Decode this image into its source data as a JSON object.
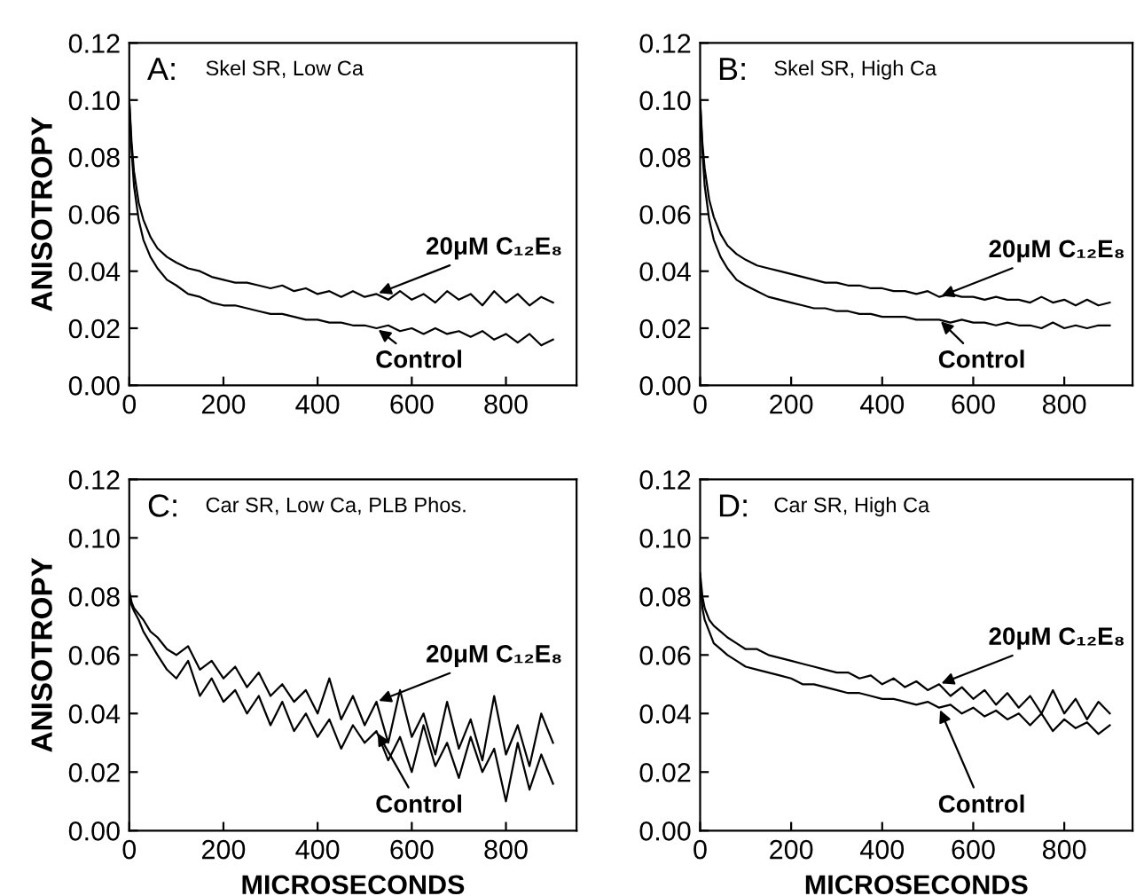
{
  "chart_data": [
    {
      "type": "line",
      "title": "A:",
      "subtitle": "Skel SR, Low Ca",
      "ylabel": "ANISOTROPY",
      "x": [
        0,
        5,
        10,
        20,
        30,
        45,
        60,
        80,
        100,
        125,
        150,
        175,
        200,
        225,
        250,
        275,
        300,
        325,
        350,
        375,
        400,
        425,
        450,
        475,
        500,
        525,
        550,
        575,
        600,
        625,
        650,
        675,
        700,
        725,
        750,
        775,
        800,
        825,
        850,
        875,
        900
      ],
      "series": [
        {
          "name": "20μM C₁₂E₈",
          "color": "#000000",
          "values": [
            0.1,
            0.085,
            0.075,
            0.064,
            0.058,
            0.052,
            0.048,
            0.045,
            0.043,
            0.041,
            0.04,
            0.038,
            0.037,
            0.036,
            0.036,
            0.035,
            0.034,
            0.035,
            0.033,
            0.034,
            0.032,
            0.033,
            0.031,
            0.033,
            0.031,
            0.032,
            0.03,
            0.033,
            0.03,
            0.032,
            0.029,
            0.033,
            0.03,
            0.032,
            0.028,
            0.033,
            0.029,
            0.032,
            0.028,
            0.031,
            0.029
          ]
        },
        {
          "name": "Control",
          "color": "#000000",
          "values": [
            0.1,
            0.082,
            0.07,
            0.058,
            0.051,
            0.045,
            0.041,
            0.037,
            0.035,
            0.032,
            0.031,
            0.029,
            0.028,
            0.028,
            0.027,
            0.026,
            0.025,
            0.025,
            0.024,
            0.023,
            0.023,
            0.022,
            0.022,
            0.021,
            0.021,
            0.02,
            0.021,
            0.019,
            0.02,
            0.018,
            0.02,
            0.018,
            0.019,
            0.017,
            0.019,
            0.016,
            0.018,
            0.015,
            0.018,
            0.014,
            0.016
          ]
        }
      ],
      "xlim": [
        0,
        950
      ],
      "ylim": [
        0,
        0.12
      ],
      "xticks": [
        0,
        200,
        400,
        600,
        800
      ],
      "yticks": [
        {
          "value": 0,
          "label": "0.00"
        },
        {
          "value": 0.02,
          "label": "0.02"
        },
        {
          "value": 0.04,
          "label": "0.04"
        },
        {
          "value": 0.06,
          "label": "0.06"
        },
        {
          "value": 0.08,
          "label": "0.08"
        },
        {
          "value": 0.1,
          "label": "0.10"
        },
        {
          "value": 0.12,
          "label": "0.12"
        }
      ],
      "grid": false,
      "legend": "right"
    },
    {
      "type": "line",
      "title": "B:",
      "subtitle": "Skel SR, High Ca",
      "x": [
        0,
        5,
        10,
        20,
        30,
        45,
        60,
        80,
        100,
        125,
        150,
        175,
        200,
        225,
        250,
        275,
        300,
        325,
        350,
        375,
        400,
        425,
        450,
        475,
        500,
        525,
        550,
        575,
        600,
        625,
        650,
        675,
        700,
        725,
        750,
        775,
        800,
        825,
        850,
        875,
        900
      ],
      "series": [
        {
          "name": "20μM C₁₂E₈",
          "color": "#000000",
          "values": [
            0.1,
            0.085,
            0.076,
            0.065,
            0.059,
            0.053,
            0.049,
            0.046,
            0.044,
            0.042,
            0.041,
            0.04,
            0.039,
            0.038,
            0.037,
            0.036,
            0.036,
            0.035,
            0.035,
            0.034,
            0.034,
            0.033,
            0.033,
            0.032,
            0.033,
            0.031,
            0.032,
            0.031,
            0.031,
            0.03,
            0.031,
            0.03,
            0.03,
            0.029,
            0.031,
            0.029,
            0.03,
            0.028,
            0.03,
            0.028,
            0.029
          ]
        },
        {
          "name": "Control",
          "color": "#000000",
          "values": [
            0.1,
            0.082,
            0.07,
            0.058,
            0.051,
            0.045,
            0.041,
            0.037,
            0.035,
            0.033,
            0.031,
            0.03,
            0.029,
            0.028,
            0.027,
            0.027,
            0.026,
            0.026,
            0.025,
            0.025,
            0.024,
            0.024,
            0.024,
            0.023,
            0.023,
            0.023,
            0.022,
            0.023,
            0.022,
            0.022,
            0.021,
            0.022,
            0.021,
            0.021,
            0.02,
            0.022,
            0.02,
            0.021,
            0.02,
            0.021,
            0.021
          ]
        }
      ],
      "xlim": [
        0,
        950
      ],
      "ylim": [
        0,
        0.12
      ],
      "xticks": [
        0,
        200,
        400,
        600,
        800
      ],
      "yticks": [
        {
          "value": 0,
          "label": "0.00"
        },
        {
          "value": 0.02,
          "label": "0.02"
        },
        {
          "value": 0.04,
          "label": "0.04"
        },
        {
          "value": 0.06,
          "label": "0.06"
        },
        {
          "value": 0.08,
          "label": "0.08"
        },
        {
          "value": 0.1,
          "label": "0.10"
        },
        {
          "value": 0.12,
          "label": "0.12"
        }
      ],
      "grid": false,
      "legend": "right"
    },
    {
      "type": "line",
      "title": "C:",
      "subtitle": "Car SR, Low Ca, PLB Phos.",
      "ylabel": "ANISOTROPY",
      "xlabel": "MICROSECONDS",
      "x": [
        0,
        5,
        10,
        20,
        30,
        45,
        60,
        80,
        100,
        125,
        150,
        175,
        200,
        225,
        250,
        275,
        300,
        325,
        350,
        375,
        400,
        425,
        450,
        475,
        500,
        525,
        550,
        575,
        600,
        625,
        650,
        675,
        700,
        725,
        750,
        775,
        800,
        825,
        850,
        875,
        900
      ],
      "series": [
        {
          "name": "20μM C₁₂E₈",
          "color": "#000000",
          "values": [
            0.082,
            0.078,
            0.076,
            0.074,
            0.072,
            0.068,
            0.066,
            0.062,
            0.06,
            0.063,
            0.055,
            0.058,
            0.052,
            0.056,
            0.049,
            0.054,
            0.046,
            0.05,
            0.044,
            0.048,
            0.04,
            0.052,
            0.038,
            0.046,
            0.036,
            0.044,
            0.03,
            0.048,
            0.032,
            0.04,
            0.026,
            0.044,
            0.028,
            0.038,
            0.024,
            0.046,
            0.026,
            0.036,
            0.022,
            0.04,
            0.03
          ]
        },
        {
          "name": "Control",
          "color": "#000000",
          "values": [
            0.08,
            0.077,
            0.075,
            0.072,
            0.068,
            0.064,
            0.06,
            0.055,
            0.052,
            0.058,
            0.046,
            0.052,
            0.044,
            0.048,
            0.04,
            0.046,
            0.036,
            0.044,
            0.034,
            0.04,
            0.032,
            0.038,
            0.028,
            0.036,
            0.03,
            0.034,
            0.024,
            0.032,
            0.02,
            0.036,
            0.022,
            0.03,
            0.018,
            0.032,
            0.02,
            0.028,
            0.01,
            0.03,
            0.014,
            0.026,
            0.016
          ]
        }
      ],
      "xlim": [
        0,
        950
      ],
      "ylim": [
        0,
        0.12
      ],
      "xticks": [
        0,
        200,
        400,
        600,
        800
      ],
      "yticks": [
        {
          "value": 0,
          "label": "0.00"
        },
        {
          "value": 0.02,
          "label": "0.02"
        },
        {
          "value": 0.04,
          "label": "0.04"
        },
        {
          "value": 0.06,
          "label": "0.06"
        },
        {
          "value": 0.08,
          "label": "0.08"
        },
        {
          "value": 0.1,
          "label": "0.10"
        },
        {
          "value": 0.12,
          "label": "0.12"
        }
      ],
      "grid": false,
      "legend": "right"
    },
    {
      "type": "line",
      "title": "D:",
      "subtitle": "Car SR, High Ca",
      "xlabel": "MICROSECONDS",
      "x": [
        0,
        5,
        10,
        20,
        30,
        45,
        60,
        80,
        100,
        125,
        150,
        175,
        200,
        225,
        250,
        275,
        300,
        325,
        350,
        375,
        400,
        425,
        450,
        475,
        500,
        525,
        550,
        575,
        600,
        625,
        650,
        675,
        700,
        725,
        750,
        775,
        800,
        825,
        850,
        875,
        900
      ],
      "series": [
        {
          "name": "20μM C₁₂E₈",
          "color": "#000000",
          "values": [
            0.088,
            0.08,
            0.076,
            0.072,
            0.07,
            0.068,
            0.066,
            0.064,
            0.062,
            0.062,
            0.06,
            0.059,
            0.058,
            0.057,
            0.056,
            0.055,
            0.054,
            0.054,
            0.052,
            0.053,
            0.05,
            0.052,
            0.049,
            0.051,
            0.048,
            0.05,
            0.046,
            0.049,
            0.045,
            0.048,
            0.043,
            0.047,
            0.042,
            0.046,
            0.04,
            0.048,
            0.04,
            0.045,
            0.038,
            0.044,
            0.04
          ]
        },
        {
          "name": "Control",
          "color": "#000000",
          "values": [
            0.086,
            0.076,
            0.072,
            0.068,
            0.064,
            0.062,
            0.06,
            0.058,
            0.056,
            0.055,
            0.054,
            0.053,
            0.052,
            0.05,
            0.05,
            0.049,
            0.048,
            0.047,
            0.047,
            0.046,
            0.045,
            0.045,
            0.044,
            0.043,
            0.044,
            0.042,
            0.043,
            0.04,
            0.042,
            0.039,
            0.041,
            0.038,
            0.04,
            0.036,
            0.04,
            0.034,
            0.038,
            0.035,
            0.037,
            0.033,
            0.036
          ]
        }
      ],
      "xlim": [
        0,
        950
      ],
      "ylim": [
        0,
        0.12
      ],
      "xticks": [
        0,
        200,
        400,
        600,
        800
      ],
      "yticks": [
        {
          "value": 0,
          "label": "0.00"
        },
        {
          "value": 0.02,
          "label": "0.02"
        },
        {
          "value": 0.04,
          "label": "0.04"
        },
        {
          "value": 0.06,
          "label": "0.06"
        },
        {
          "value": 0.08,
          "label": "0.08"
        },
        {
          "value": 0.1,
          "label": "0.10"
        },
        {
          "value": 0.12,
          "label": "0.12"
        }
      ],
      "grid": false,
      "legend": "right"
    }
  ]
}
